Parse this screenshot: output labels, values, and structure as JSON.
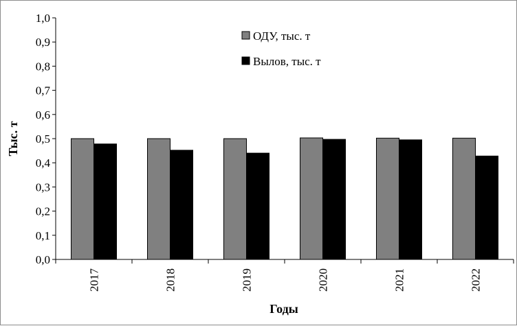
{
  "chart_data": {
    "type": "bar",
    "categories": [
      "2017",
      "2018",
      "2019",
      "2020",
      "2021",
      "2022"
    ],
    "series": [
      {
        "name": "ОДУ, тыс. т",
        "color": "#808080",
        "values": [
          0.5,
          0.5,
          0.5,
          0.503,
          0.502,
          0.502
        ]
      },
      {
        "name": "Вылов, тыс. т",
        "color": "#000000",
        "values": [
          0.478,
          0.452,
          0.44,
          0.497,
          0.495,
          0.428
        ]
      }
    ],
    "ylim": [
      0,
      1.0
    ],
    "yticks": [
      "0,0",
      "0,1",
      "0,2",
      "0,3",
      "0,4",
      "0,5",
      "0,6",
      "0,7",
      "0,8",
      "0,9",
      "1,0"
    ],
    "xlabel": "Годы",
    "ylabel": "Тыс. т",
    "grid": false,
    "legend_position": "top-center"
  }
}
